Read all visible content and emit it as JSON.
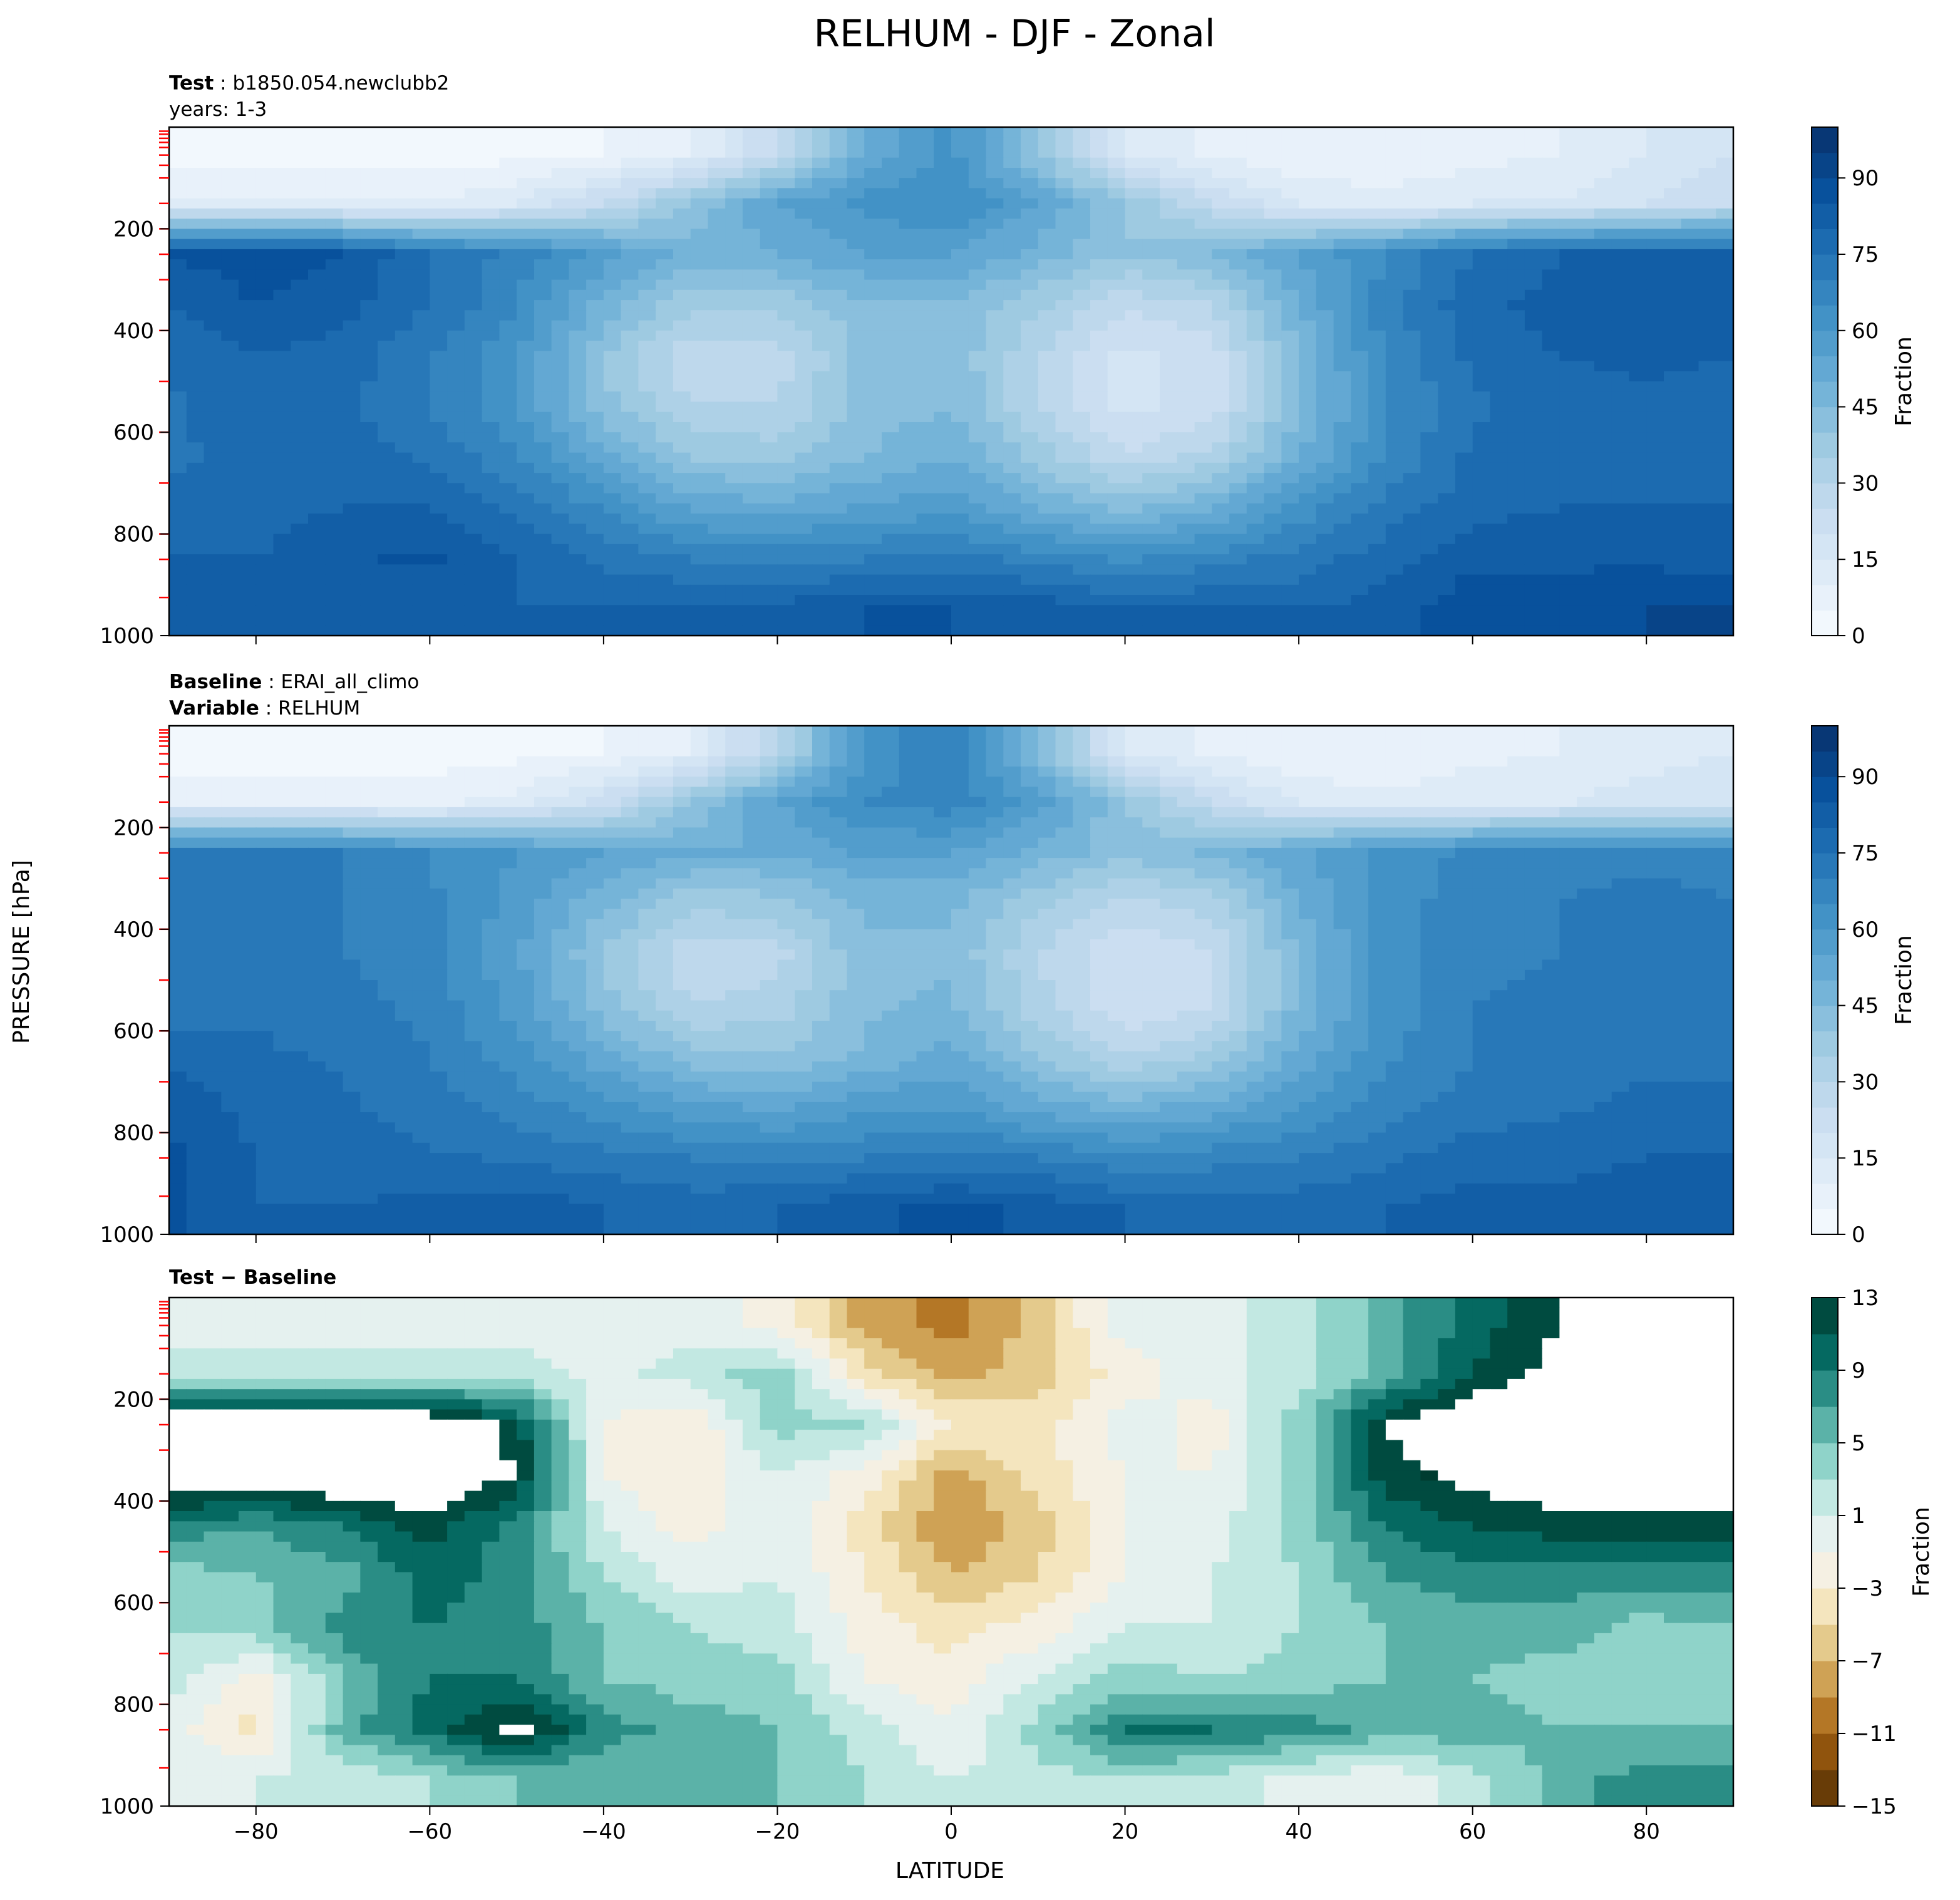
{
  "figure": {
    "suptitle": "RELHUM - DJF - Zonal",
    "ylabel": "PRESSURE [hPa]",
    "xlabel": "LATITUDE"
  },
  "panels": [
    {
      "id": "test",
      "line1_bold": "Test",
      "line1_text": "b1850.054.newclubb2",
      "line2_text": "years: 1-3",
      "line2_bold": "",
      "colorbar_label": "Fraction",
      "colorbar_ticks": [
        "0",
        "15",
        "30",
        "45",
        "60",
        "75",
        "90"
      ]
    },
    {
      "id": "baseline",
      "line1_bold": "Baseline",
      "line1_text": "ERAI_all_climo",
      "line2_bold": "Variable",
      "line2_text": "RELHUM",
      "colorbar_label": "Fraction",
      "colorbar_ticks": [
        "0",
        "15",
        "30",
        "45",
        "60",
        "75",
        "90"
      ]
    },
    {
      "id": "diff",
      "line1_bold": "Test − Baseline",
      "line1_text": "",
      "colorbar_label": "Fraction",
      "colorbar_ticks": [
        "−15",
        "−11",
        "−7",
        "−3",
        "1",
        "5",
        "9",
        "13"
      ]
    }
  ],
  "x_tick_labels": [
    "−80",
    "−60",
    "−40",
    "−20",
    "0",
    "20",
    "40",
    "60",
    "80"
  ],
  "y_tick_labels": [
    "200",
    "400",
    "600",
    "800",
    "1000"
  ],
  "chart_data": [
    {
      "type": "heatmap",
      "title": "Test: b1850.054.newclubb2 years: 1-3",
      "xlabel": "LATITUDE",
      "ylabel": "PRESSURE [hPa]",
      "xlim": [
        -90,
        90
      ],
      "ylim": [
        1000,
        0
      ],
      "x": [
        -90,
        -80,
        -70,
        -60,
        -50,
        -40,
        -30,
        -20,
        -10,
        0,
        10,
        20,
        30,
        40,
        50,
        60,
        70,
        80,
        90
      ],
      "y": [
        50,
        150,
        250,
        350,
        450,
        550,
        650,
        750,
        850,
        950
      ],
      "z": [
        [
          2,
          2,
          2,
          2,
          3,
          5,
          10,
          25,
          50,
          62,
          40,
          15,
          8,
          5,
          5,
          8,
          10,
          15,
          20
        ],
        [
          10,
          10,
          10,
          10,
          15,
          25,
          40,
          55,
          62,
          65,
          55,
          40,
          25,
          15,
          12,
          15,
          15,
          20,
          25
        ],
        [
          85,
          88,
          85,
          75,
          68,
          58,
          48,
          50,
          55,
          55,
          48,
          40,
          45,
          55,
          65,
          75,
          80,
          80,
          80
        ],
        [
          80,
          85,
          82,
          75,
          65,
          48,
          36,
          36,
          44,
          45,
          36,
          26,
          30,
          50,
          68,
          78,
          82,
          83,
          82
        ],
        [
          76,
          80,
          78,
          70,
          60,
          40,
          26,
          27,
          42,
          44,
          30,
          18,
          22,
          45,
          66,
          76,
          80,
          81,
          80
        ],
        [
          74,
          78,
          76,
          70,
          60,
          42,
          30,
          30,
          42,
          45,
          30,
          18,
          22,
          44,
          64,
          74,
          78,
          79,
          78
        ],
        [
          74,
          77,
          78,
          74,
          66,
          52,
          40,
          38,
          45,
          50,
          38,
          26,
          32,
          50,
          66,
          76,
          78,
          78,
          78
        ],
        [
          76,
          78,
          80,
          80,
          74,
          64,
          54,
          52,
          56,
          58,
          50,
          44,
          50,
          62,
          72,
          78,
          80,
          80,
          80
        ],
        [
          80,
          80,
          84,
          86,
          80,
          74,
          70,
          68,
          70,
          72,
          68,
          64,
          68,
          72,
          78,
          84,
          84,
          84,
          82
        ],
        [
          80,
          80,
          80,
          80,
          80,
          80,
          82,
          82,
          85,
          85,
          84,
          80,
          80,
          80,
          82,
          88,
          88,
          90,
          90
        ]
      ],
      "colorbar_label": "Fraction",
      "colorbar_range": [
        0,
        100
      ]
    },
    {
      "type": "heatmap",
      "title": "Baseline: ERAI_all_climo Variable: RELHUM",
      "xlabel": "LATITUDE",
      "ylabel": "PRESSURE [hPa]",
      "xlim": [
        -90,
        90
      ],
      "ylim": [
        1000,
        0
      ],
      "x": [
        -90,
        -80,
        -70,
        -60,
        -50,
        -40,
        -30,
        -20,
        -10,
        0,
        10,
        20,
        30,
        40,
        50,
        60,
        70,
        80,
        90
      ],
      "y": [
        50,
        150,
        250,
        350,
        450,
        550,
        650,
        750,
        850,
        950
      ],
      "z": [
        [
          2,
          2,
          2,
          2,
          3,
          5,
          10,
          30,
          60,
          70,
          45,
          15,
          8,
          5,
          5,
          8,
          10,
          12,
          15
        ],
        [
          8,
          8,
          8,
          8,
          12,
          22,
          40,
          55,
          65,
          68,
          58,
          40,
          25,
          14,
          12,
          14,
          14,
          18,
          20
        ],
        [
          72,
          72,
          70,
          65,
          60,
          55,
          50,
          50,
          56,
          55,
          48,
          42,
          46,
          54,
          62,
          66,
          68,
          68,
          68
        ],
        [
          70,
          72,
          70,
          66,
          58,
          46,
          36,
          38,
          46,
          46,
          36,
          28,
          32,
          50,
          62,
          68,
          70,
          72,
          70
        ],
        [
          70,
          72,
          70,
          66,
          56,
          40,
          26,
          28,
          44,
          44,
          30,
          20,
          24,
          46,
          62,
          68,
          70,
          72,
          70
        ],
        [
          72,
          74,
          72,
          68,
          58,
          42,
          30,
          32,
          44,
          46,
          32,
          20,
          24,
          46,
          62,
          70,
          72,
          72,
          72
        ],
        [
          78,
          76,
          74,
          70,
          62,
          52,
          42,
          40,
          46,
          52,
          40,
          30,
          36,
          52,
          64,
          70,
          72,
          74,
          74
        ],
        [
          84,
          78,
          76,
          72,
          68,
          62,
          56,
          54,
          58,
          60,
          52,
          48,
          52,
          60,
          68,
          72,
          74,
          76,
          76
        ],
        [
          86,
          80,
          78,
          76,
          74,
          72,
          70,
          68,
          70,
          72,
          70,
          66,
          68,
          70,
          74,
          78,
          78,
          80,
          80
        ],
        [
          86,
          80,
          80,
          82,
          84,
          80,
          78,
          80,
          84,
          86,
          84,
          80,
          78,
          78,
          80,
          82,
          82,
          84,
          84
        ]
      ],
      "colorbar_label": "Fraction",
      "colorbar_range": [
        0,
        100
      ]
    },
    {
      "type": "heatmap",
      "title": "Test − Baseline",
      "xlabel": "LATITUDE",
      "ylabel": "PRESSURE [hPa]",
      "xlim": [
        -90,
        90
      ],
      "ylim": [
        1000,
        0
      ],
      "x": [
        -90,
        -80,
        -70,
        -60,
        -50,
        -40,
        -30,
        -20,
        -10,
        0,
        10,
        20,
        30,
        40,
        50,
        60,
        70,
        80,
        90
      ],
      "y": [
        50,
        150,
        250,
        350,
        450,
        550,
        650,
        750,
        850,
        950
      ],
      "z": [
        [
          0,
          0,
          0,
          0,
          0,
          0,
          0,
          -2,
          -8,
          -10,
          -6,
          0,
          0,
          2,
          6,
          10,
          13,
          15,
          15
        ],
        [
          2,
          2,
          2,
          2,
          2,
          0,
          2,
          4,
          -4,
          -8,
          -6,
          -2,
          0,
          2,
          6,
          11,
          14,
          15,
          15
        ],
        [
          16,
          16,
          16,
          16,
          12,
          -1,
          -3,
          4,
          3,
          -3,
          -4,
          0,
          -2,
          4,
          13,
          16,
          16,
          16,
          16
        ],
        [
          16,
          16,
          16,
          16,
          13,
          -1,
          -3,
          1,
          -2,
          -8,
          -4,
          -1,
          -1,
          4,
          12,
          14,
          15,
          15,
          16
        ],
        [
          8,
          7,
          9,
          12,
          8,
          1,
          -2,
          1,
          -4,
          -9,
          -6,
          -1,
          0,
          4,
          9,
          11,
          12,
          12,
          12
        ],
        [
          4,
          5,
          6,
          10,
          8,
          3,
          0,
          1,
          -3,
          -7,
          -5,
          -1,
          1,
          3,
          7,
          8,
          8,
          8,
          8
        ],
        [
          3,
          4,
          8,
          9,
          8,
          5,
          3,
          2,
          -2,
          -4,
          -2,
          1,
          1,
          3,
          5,
          6,
          6,
          4,
          5
        ],
        [
          2,
          -2,
          5,
          9,
          9,
          5,
          4,
          4,
          -1,
          -2,
          1,
          4,
          3,
          4,
          5,
          5,
          4,
          4,
          5
        ],
        [
          0,
          -4,
          6,
          10,
          14,
          8,
          6,
          5,
          2,
          -1,
          4,
          9,
          9,
          8,
          6,
          6,
          5,
          5,
          5
        ],
        [
          0,
          1,
          1,
          3,
          5,
          5,
          5,
          5,
          3,
          1,
          2,
          3,
          2,
          0,
          -1,
          2,
          6,
          8,
          8
        ]
      ],
      "colorbar_label": "Fraction",
      "colorbar_range": [
        -15,
        13
      ]
    }
  ]
}
